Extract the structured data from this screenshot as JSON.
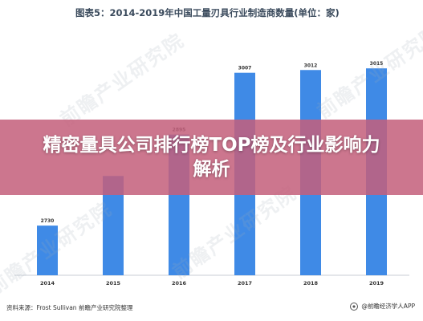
{
  "chart_data": {
    "type": "bar",
    "title": "图表5：2014-2019年中国工量刃具行业制造商数量(单位：家)",
    "categories": [
      "2014",
      "2015",
      "2016",
      "2017",
      "2018",
      "2019"
    ],
    "values": [
      2730,
      null,
      2895,
      3007,
      3012,
      3015
    ],
    "bar_heights": [
      2730,
      2820,
      2895,
      3007,
      3012,
      3015
    ],
    "ylim": [
      2640,
      3040
    ],
    "grid": false,
    "legend": "none",
    "colors": {
      "bar": "#3f8ae6"
    }
  },
  "overlay": {
    "banner_title": "精密量具公司排行榜TOP榜及行业影响力解析"
  },
  "footer": {
    "source": "资料来源：Frost Sullivan 前瞻产业研究院整理",
    "brand": "@前瞻经济学人APP"
  },
  "watermark": {
    "text": "前瞻产业研究院"
  }
}
